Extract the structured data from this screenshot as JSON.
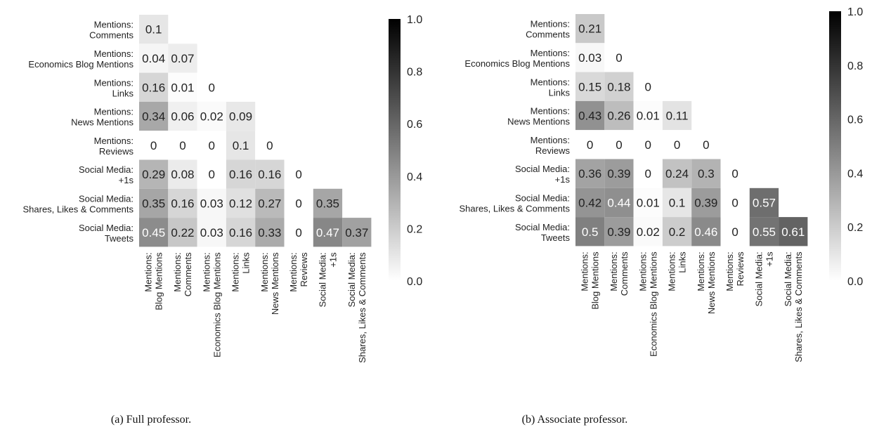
{
  "chart_data": [
    {
      "type": "heatmap",
      "caption": "(a) Full professor.",
      "row_labels": [
        [
          "Mentions:",
          "Comments"
        ],
        [
          "Mentions:",
          "Economics Blog Mentions"
        ],
        [
          "Mentions:",
          "Links"
        ],
        [
          "Mentions:",
          "News Mentions"
        ],
        [
          "Mentions:",
          "Reviews"
        ],
        [
          "Social Media:",
          "+1s"
        ],
        [
          "Social Media:",
          "Shares, Likes & Comments"
        ],
        [
          "Social Media:",
          "Tweets"
        ]
      ],
      "col_labels": [
        [
          "Mentions:",
          "Blog Mentions"
        ],
        [
          "Mentions:",
          "Comments"
        ],
        [
          "Mentions:",
          "Economics Blog Mentions"
        ],
        [
          "Mentions:",
          "Links"
        ],
        [
          "Mentions:",
          "News Mentions"
        ],
        [
          "Mentions:",
          "Reviews"
        ],
        [
          "Social Media:",
          "+1s"
        ],
        [
          "Social Media:",
          "Shares, Likes & Comments"
        ]
      ],
      "values": [
        [
          0.1
        ],
        [
          0.04,
          0.07
        ],
        [
          0.16,
          0.01,
          0
        ],
        [
          0.34,
          0.06,
          0.02,
          0.09
        ],
        [
          0,
          0,
          0,
          0.1,
          0
        ],
        [
          0.29,
          0.08,
          0,
          0.16,
          0.16,
          0
        ],
        [
          0.35,
          0.16,
          0.03,
          0.12,
          0.27,
          0,
          0.35
        ],
        [
          0.45,
          0.22,
          0.03,
          0.16,
          0.33,
          0,
          0.47,
          0.37
        ]
      ],
      "colorbar": {
        "min": 0.0,
        "max": 1.0,
        "ticks": [
          "0.0",
          "0.2",
          "0.4",
          "0.6",
          "0.8",
          "1.0"
        ]
      }
    },
    {
      "type": "heatmap",
      "caption": "(b) Associate professor.",
      "row_labels": [
        [
          "Mentions:",
          "Comments"
        ],
        [
          "Mentions:",
          "Economics Blog Mentions"
        ],
        [
          "Mentions:",
          "Links"
        ],
        [
          "Mentions:",
          "News Mentions"
        ],
        [
          "Mentions:",
          "Reviews"
        ],
        [
          "Social Media:",
          "+1s"
        ],
        [
          "Social Media:",
          "Shares, Likes & Comments"
        ],
        [
          "Social Media:",
          "Tweets"
        ]
      ],
      "col_labels": [
        [
          "Mentions:",
          "Blog Mentions"
        ],
        [
          "Mentions:",
          "Comments"
        ],
        [
          "Mentions:",
          "Economics Blog Mentions"
        ],
        [
          "Mentions:",
          "Links"
        ],
        [
          "Mentions:",
          "News Mentions"
        ],
        [
          "Mentions:",
          "Reviews"
        ],
        [
          "Social Media:",
          "+1s"
        ],
        [
          "Social Media:",
          "Shares, Likes & Comments"
        ]
      ],
      "values": [
        [
          0.21
        ],
        [
          0.03,
          0
        ],
        [
          0.15,
          0.18,
          0
        ],
        [
          0.43,
          0.26,
          0.01,
          0.11
        ],
        [
          0,
          0,
          0,
          0,
          0
        ],
        [
          0.36,
          0.39,
          0,
          0.24,
          0.3,
          0
        ],
        [
          0.42,
          0.44,
          0.01,
          0.1,
          0.39,
          0,
          0.57
        ],
        [
          0.5,
          0.39,
          0.02,
          0.2,
          0.46,
          0,
          0.55,
          0.61
        ]
      ],
      "colorbar": {
        "min": 0.0,
        "max": 1.0,
        "ticks": [
          "0.0",
          "0.2",
          "0.4",
          "0.6",
          "0.8",
          "1.0"
        ]
      }
    }
  ]
}
